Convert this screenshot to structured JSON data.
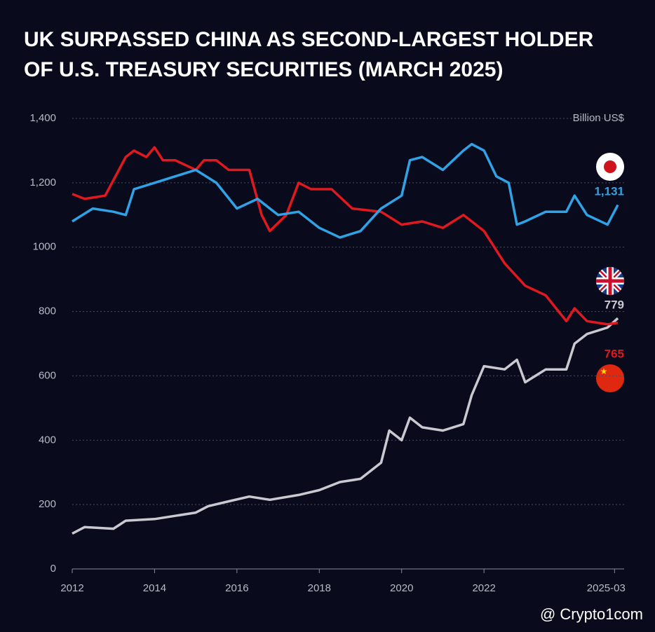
{
  "chart_data": {
    "type": "line",
    "title_lines": [
      "UK SURPASSED CHINA AS SECOND-LARGEST HOLDER",
      "OF U.S. TREASURY SECURITIES (MARCH 2025)"
    ],
    "unit_label": "Billion US$",
    "xlim": [
      2012,
      2025.25
    ],
    "xticks": [
      2012,
      2014,
      2016,
      2018,
      2020,
      2022,
      {
        "value": 2025.17,
        "label": "2025-03"
      }
    ],
    "ylim": [
      0,
      1400
    ],
    "yticks": [
      0,
      200,
      400,
      600,
      800,
      1000,
      {
        "value": 1200,
        "label": "1,200"
      },
      {
        "value": 1400,
        "label": "1,400"
      }
    ],
    "grid": true,
    "series": [
      {
        "color": "#2fa3e6",
        "end_label": "1,131",
        "x": [
          2012,
          2012.5,
          2013,
          2013.3,
          2013.5,
          2014,
          2014.5,
          2015,
          2015.5,
          2016,
          2016.5,
          2017,
          2017.5,
          2018,
          2018.5,
          2019,
          2019.5,
          2020,
          2020.2,
          2020.5,
          2021,
          2021.5,
          2021.7,
          2022,
          2022.3,
          2022.6,
          2022.8,
          2023,
          2023.5,
          2024,
          2024.2,
          2024.5,
          2025,
          2025.25
        ],
        "values": [
          1080,
          1120,
          1110,
          1100,
          1180,
          1200,
          1220,
          1240,
          1200,
          1120,
          1150,
          1100,
          1110,
          1060,
          1030,
          1050,
          1120,
          1160,
          1270,
          1280,
          1240,
          1300,
          1320,
          1300,
          1220,
          1200,
          1070,
          1080,
          1110,
          1110,
          1160,
          1100,
          1070,
          1131
        ]
      },
      {
        "color": "#e0191f",
        "end_label": "765",
        "x": [
          2012,
          2012.3,
          2012.8,
          2013.3,
          2013.5,
          2013.8,
          2014,
          2014.2,
          2014.5,
          2015,
          2015.2,
          2015.5,
          2015.8,
          2016.3,
          2016.6,
          2016.8,
          2017.2,
          2017.5,
          2017.8,
          2018.3,
          2018.8,
          2019.5,
          2020,
          2020.5,
          2021,
          2021.5,
          2022,
          2022.5,
          2023,
          2023.5,
          2024,
          2024.2,
          2024.5,
          2025,
          2025.25
        ],
        "values": [
          1165,
          1150,
          1160,
          1280,
          1300,
          1280,
          1310,
          1270,
          1270,
          1240,
          1270,
          1270,
          1240,
          1240,
          1100,
          1050,
          1100,
          1200,
          1180,
          1180,
          1120,
          1110,
          1070,
          1080,
          1060,
          1100,
          1050,
          950,
          880,
          850,
          770,
          810,
          770,
          760,
          765
        ]
      },
      {
        "color": "#c9c9cf",
        "end_label": "779",
        "x": [
          2012,
          2012.3,
          2013,
          2013.3,
          2014,
          2014.5,
          2015,
          2015.3,
          2015.8,
          2016.3,
          2016.8,
          2017.5,
          2018,
          2018.5,
          2019,
          2019.5,
          2019.7,
          2020,
          2020.2,
          2020.5,
          2021,
          2021.5,
          2021.7,
          2022,
          2022.5,
          2022.8,
          2023,
          2023.5,
          2024,
          2024.2,
          2024.5,
          2025,
          2025.25
        ],
        "values": [
          110,
          130,
          125,
          150,
          155,
          165,
          175,
          195,
          210,
          225,
          215,
          230,
          245,
          270,
          280,
          330,
          430,
          400,
          470,
          440,
          430,
          450,
          540,
          630,
          620,
          650,
          580,
          620,
          620,
          700,
          730,
          750,
          779
        ]
      }
    ],
    "watermark": "@ Crypto1com"
  }
}
